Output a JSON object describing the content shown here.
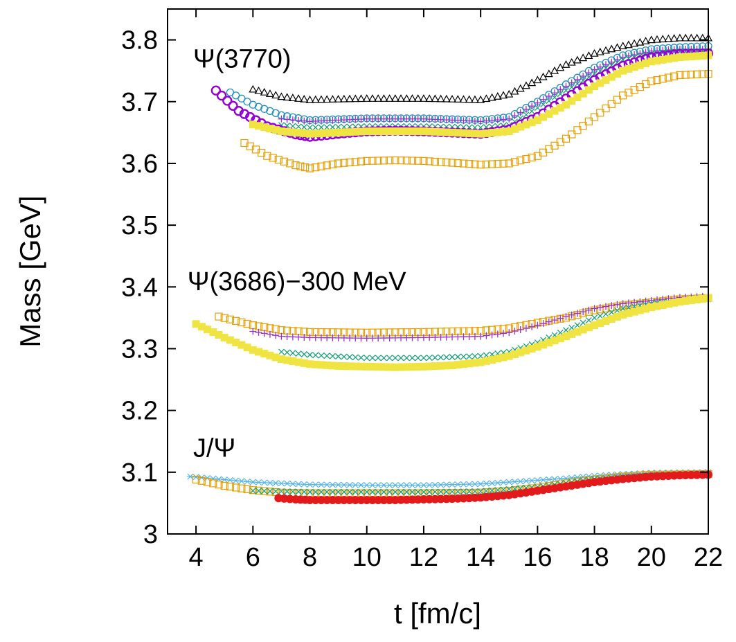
{
  "chart_data": {
    "type": "scatter",
    "xlabel": "t [fm/c]",
    "ylabel": "Mass [GeV]",
    "xlim": [
      3,
      22
    ],
    "ylim": [
      3,
      3.85
    ],
    "xticks": [
      "4",
      "6",
      "8",
      "10",
      "12",
      "14",
      "16",
      "18",
      "20",
      "22"
    ],
    "yticks": [
      "3",
      "3.1",
      "3.2",
      "3.3",
      "3.4",
      "3.5",
      "3.6",
      "3.7",
      "3.8"
    ],
    "grid": false,
    "legend": "none",
    "annotations": [
      {
        "text": "Ψ(3770)",
        "x": 3.9,
        "y": 3.755
      },
      {
        "text": "Ψ(3686)−300 MeV",
        "x": 3.7,
        "y": 3.395
      },
      {
        "text": "J/Ψ",
        "x": 3.9,
        "y": 3.125
      }
    ],
    "series": [
      {
        "group": "Psi3770",
        "marker": "triangle",
        "color": "#000000",
        "points": [
          [
            6.0,
            3.72
          ],
          [
            7.0,
            3.708
          ],
          [
            8.0,
            3.703
          ],
          [
            10.0,
            3.705
          ],
          [
            12.0,
            3.705
          ],
          [
            14.0,
            3.703
          ],
          [
            15.0,
            3.712
          ],
          [
            16.0,
            3.735
          ],
          [
            17.0,
            3.76
          ],
          [
            18.0,
            3.778
          ],
          [
            19.0,
            3.79
          ],
          [
            20.0,
            3.8
          ],
          [
            21.0,
            3.803
          ],
          [
            22.0,
            3.803
          ]
        ]
      },
      {
        "group": "Psi3770",
        "marker": "circle-open",
        "color": "#1f8fc0",
        "points": [
          [
            5.2,
            3.715
          ],
          [
            6.0,
            3.695
          ],
          [
            7.0,
            3.678
          ],
          [
            8.0,
            3.67
          ],
          [
            10.0,
            3.673
          ],
          [
            12.0,
            3.673
          ],
          [
            14.0,
            3.67
          ],
          [
            15.0,
            3.675
          ],
          [
            16.0,
            3.7
          ],
          [
            17.0,
            3.728
          ],
          [
            18.0,
            3.755
          ],
          [
            19.0,
            3.775
          ],
          [
            20.0,
            3.785
          ],
          [
            21.0,
            3.788
          ],
          [
            22.0,
            3.79
          ]
        ]
      },
      {
        "group": "Psi3770",
        "marker": "plus",
        "color": "#9b30c8",
        "points": [
          [
            7.0,
            3.672
          ],
          [
            8.0,
            3.668
          ],
          [
            10.0,
            3.672
          ],
          [
            12.0,
            3.672
          ],
          [
            14.0,
            3.668
          ],
          [
            15.0,
            3.672
          ],
          [
            16.0,
            3.698
          ],
          [
            17.0,
            3.725
          ],
          [
            18.0,
            3.752
          ],
          [
            19.0,
            3.772
          ],
          [
            20.0,
            3.782
          ],
          [
            21.0,
            3.785
          ],
          [
            22.0,
            3.785
          ]
        ]
      },
      {
        "group": "Psi3770",
        "marker": "cross",
        "color": "#18a078",
        "points": [
          [
            7.0,
            3.662
          ],
          [
            8.0,
            3.658
          ],
          [
            10.0,
            3.66
          ],
          [
            12.0,
            3.66
          ],
          [
            14.0,
            3.658
          ],
          [
            15.0,
            3.662
          ],
          [
            16.0,
            3.69
          ],
          [
            17.0,
            3.718
          ],
          [
            18.0,
            3.745
          ],
          [
            19.0,
            3.768
          ],
          [
            20.0,
            3.778
          ],
          [
            21.0,
            3.782
          ],
          [
            22.0,
            3.782
          ]
        ]
      },
      {
        "group": "Psi3770",
        "marker": "circle-open-bold",
        "color": "#9400d3",
        "points": [
          [
            4.7,
            3.718
          ],
          [
            5.5,
            3.685
          ],
          [
            6.5,
            3.66
          ],
          [
            7.5,
            3.647
          ],
          [
            8.0,
            3.643
          ],
          [
            9.0,
            3.648
          ],
          [
            10.0,
            3.652
          ],
          [
            11.0,
            3.653
          ],
          [
            12.0,
            3.652
          ],
          [
            13.0,
            3.65
          ],
          [
            14.0,
            3.648
          ],
          [
            15.0,
            3.655
          ],
          [
            16.0,
            3.675
          ],
          [
            17.0,
            3.705
          ],
          [
            18.0,
            3.735
          ],
          [
            19.0,
            3.758
          ],
          [
            20.0,
            3.772
          ],
          [
            21.0,
            3.777
          ],
          [
            22.0,
            3.778
          ]
        ]
      },
      {
        "group": "Psi3770",
        "marker": "square-filled",
        "color": "#f0e442",
        "points": [
          [
            6.0,
            3.663
          ],
          [
            7.0,
            3.652
          ],
          [
            8.0,
            3.648
          ],
          [
            10.0,
            3.652
          ],
          [
            12.0,
            3.652
          ],
          [
            14.0,
            3.648
          ],
          [
            15.0,
            3.652
          ],
          [
            16.0,
            3.67
          ],
          [
            17.0,
            3.695
          ],
          [
            18.0,
            3.725
          ],
          [
            19.0,
            3.75
          ],
          [
            20.0,
            3.765
          ],
          [
            21.0,
            3.772
          ],
          [
            22.0,
            3.775
          ]
        ]
      },
      {
        "group": "Psi3770",
        "marker": "square-open",
        "color": "#e69f00",
        "points": [
          [
            5.7,
            3.633
          ],
          [
            6.5,
            3.612
          ],
          [
            7.5,
            3.597
          ],
          [
            8.0,
            3.592
          ],
          [
            9.0,
            3.6
          ],
          [
            10.0,
            3.604
          ],
          [
            11.0,
            3.605
          ],
          [
            12.0,
            3.604
          ],
          [
            13.0,
            3.601
          ],
          [
            14.0,
            3.598
          ],
          [
            15.0,
            3.6
          ],
          [
            16.0,
            3.612
          ],
          [
            17.0,
            3.64
          ],
          [
            18.0,
            3.675
          ],
          [
            19.0,
            3.71
          ],
          [
            20.0,
            3.733
          ],
          [
            21.0,
            3.743
          ],
          [
            22.0,
            3.745
          ]
        ]
      },
      {
        "group": "Psi3686",
        "marker": "square-open",
        "color": "#e69f00",
        "points": [
          [
            4.8,
            3.352
          ],
          [
            6.0,
            3.338
          ],
          [
            7.0,
            3.33
          ],
          [
            8.0,
            3.327
          ],
          [
            10.0,
            3.326
          ],
          [
            12.0,
            3.327
          ],
          [
            14.0,
            3.329
          ],
          [
            15.0,
            3.333
          ],
          [
            16.0,
            3.342
          ],
          [
            17.0,
            3.35
          ],
          [
            18.0,
            3.362
          ],
          [
            19.0,
            3.37
          ],
          [
            20.0,
            3.375
          ],
          [
            21.0,
            3.38
          ],
          [
            22.0,
            3.382
          ]
        ]
      },
      {
        "group": "Psi3686",
        "marker": "plus",
        "color": "#9b30c8",
        "points": [
          [
            6.0,
            3.328
          ],
          [
            7.0,
            3.32
          ],
          [
            8.0,
            3.318
          ],
          [
            10.0,
            3.317
          ],
          [
            12.0,
            3.318
          ],
          [
            14.0,
            3.32
          ],
          [
            15.0,
            3.326
          ],
          [
            16.0,
            3.338
          ],
          [
            17.0,
            3.352
          ],
          [
            18.0,
            3.365
          ],
          [
            19.0,
            3.373
          ],
          [
            20.0,
            3.378
          ],
          [
            21.0,
            3.383
          ],
          [
            22.0,
            3.385
          ]
        ]
      },
      {
        "group": "Psi3686",
        "marker": "cross",
        "color": "#18a078",
        "points": [
          [
            7.0,
            3.295
          ],
          [
            8.0,
            3.29
          ],
          [
            10.0,
            3.285
          ],
          [
            12.0,
            3.285
          ],
          [
            14.0,
            3.288
          ],
          [
            15.0,
            3.295
          ],
          [
            16.0,
            3.31
          ],
          [
            17.0,
            3.33
          ],
          [
            18.0,
            3.35
          ],
          [
            19.0,
            3.365
          ],
          [
            20.0,
            3.373
          ],
          [
            21.0,
            3.378
          ],
          [
            22.0,
            3.38
          ]
        ]
      },
      {
        "group": "Psi3686",
        "marker": "square-filled",
        "color": "#f0e442",
        "points": [
          [
            4.0,
            3.34
          ],
          [
            5.0,
            3.318
          ],
          [
            6.0,
            3.298
          ],
          [
            7.0,
            3.283
          ],
          [
            8.0,
            3.275
          ],
          [
            9.0,
            3.272
          ],
          [
            10.0,
            3.271
          ],
          [
            11.0,
            3.27
          ],
          [
            12.0,
            3.271
          ],
          [
            13.0,
            3.273
          ],
          [
            14.0,
            3.278
          ],
          [
            15.0,
            3.288
          ],
          [
            16.0,
            3.303
          ],
          [
            17.0,
            3.32
          ],
          [
            18.0,
            3.338
          ],
          [
            19.0,
            3.355
          ],
          [
            20.0,
            3.367
          ],
          [
            21.0,
            3.376
          ],
          [
            22.0,
            3.382
          ]
        ]
      },
      {
        "group": "JPsi",
        "marker": "asterisk",
        "color": "#56b4e9",
        "points": [
          [
            3.8,
            3.093
          ],
          [
            5.0,
            3.088
          ],
          [
            6.0,
            3.084
          ],
          [
            8.0,
            3.08
          ],
          [
            10.0,
            3.079
          ],
          [
            12.0,
            3.079
          ],
          [
            14.0,
            3.081
          ],
          [
            15.0,
            3.084
          ],
          [
            16.0,
            3.087
          ],
          [
            17.0,
            3.09
          ],
          [
            18.0,
            3.094
          ],
          [
            19.0,
            3.097
          ],
          [
            20.0,
            3.099
          ],
          [
            22.0,
            3.1
          ]
        ]
      },
      {
        "group": "JPsi",
        "marker": "square-open",
        "color": "#e69f00",
        "points": [
          [
            4.0,
            3.088
          ],
          [
            5.0,
            3.078
          ],
          [
            6.0,
            3.071
          ],
          [
            7.0,
            3.067
          ],
          [
            8.0,
            3.066
          ],
          [
            10.0,
            3.066
          ],
          [
            12.0,
            3.066
          ],
          [
            14.0,
            3.067
          ],
          [
            15.0,
            3.07
          ],
          [
            16.0,
            3.075
          ],
          [
            17.0,
            3.082
          ],
          [
            18.0,
            3.088
          ],
          [
            19.0,
            3.093
          ],
          [
            20.0,
            3.096
          ],
          [
            22.0,
            3.097
          ]
        ]
      },
      {
        "group": "JPsi",
        "marker": "cross",
        "color": "#18a078",
        "points": [
          [
            6.0,
            3.07
          ],
          [
            8.0,
            3.068
          ],
          [
            10.0,
            3.068
          ],
          [
            12.0,
            3.068
          ],
          [
            14.0,
            3.069
          ],
          [
            16.0,
            3.076
          ],
          [
            18.0,
            3.089
          ],
          [
            20.0,
            3.095
          ],
          [
            22.0,
            3.097
          ]
        ]
      },
      {
        "group": "JPsi",
        "marker": "circle-filled",
        "color": "#e31a1c",
        "points": [
          [
            6.9,
            3.058
          ],
          [
            7.5,
            3.056
          ],
          [
            8.0,
            3.055
          ],
          [
            9.0,
            3.055
          ],
          [
            10.0,
            3.055
          ],
          [
            11.0,
            3.055
          ],
          [
            12.0,
            3.056
          ],
          [
            13.0,
            3.057
          ],
          [
            14.0,
            3.059
          ],
          [
            15.0,
            3.063
          ],
          [
            16.0,
            3.07
          ],
          [
            17.0,
            3.077
          ],
          [
            18.0,
            3.084
          ],
          [
            19.0,
            3.089
          ],
          [
            20.0,
            3.093
          ],
          [
            21.0,
            3.095
          ],
          [
            22.0,
            3.096
          ]
        ]
      }
    ]
  }
}
